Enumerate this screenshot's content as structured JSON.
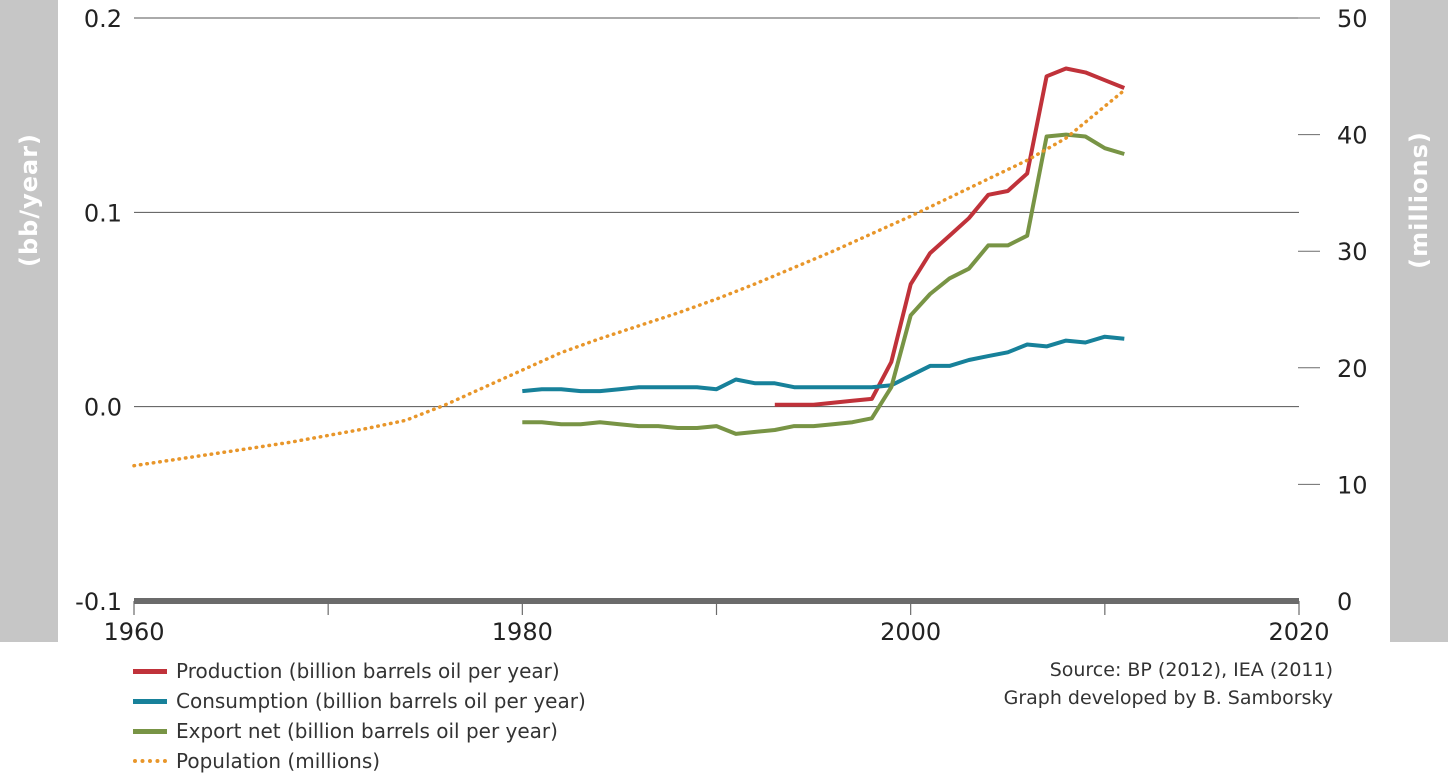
{
  "chart_data": {
    "type": "line",
    "y_left": {
      "label": "(bb/year)",
      "ticks": [
        0.2,
        0.1,
        0.0,
        -0.1
      ],
      "range": [
        -0.1,
        0.2
      ]
    },
    "y_right": {
      "label": "(millions)",
      "ticks": [
        50,
        40,
        30,
        20,
        10,
        0
      ],
      "range": [
        0,
        50
      ]
    },
    "x": {
      "ticks": [
        1960,
        1980,
        2000,
        2020
      ],
      "range": [
        1960,
        2020
      ]
    },
    "grid": true,
    "legend_position": "bottom-left",
    "series": [
      {
        "name": "Production (billion barrels oil per year)",
        "axis": "left",
        "color": "#c0323a",
        "style": "solid",
        "points": [
          [
            1993,
            0.001
          ],
          [
            1994,
            0.001
          ],
          [
            1995,
            0.001
          ],
          [
            1996,
            0.002
          ],
          [
            1997,
            0.003
          ],
          [
            1998,
            0.004
          ],
          [
            1999,
            0.023
          ],
          [
            2000,
            0.063
          ],
          [
            2001,
            0.079
          ],
          [
            2002,
            0.088
          ],
          [
            2003,
            0.097
          ],
          [
            2004,
            0.109
          ],
          [
            2005,
            0.111
          ],
          [
            2006,
            0.12
          ],
          [
            2007,
            0.17
          ],
          [
            2008,
            0.174
          ],
          [
            2009,
            0.172
          ],
          [
            2010,
            0.168
          ],
          [
            2011,
            0.164
          ]
        ]
      },
      {
        "name": "Consumption (billion barrels oil per year)",
        "axis": "left",
        "color": "#17819a",
        "style": "solid",
        "points": [
          [
            1980,
            0.008
          ],
          [
            1981,
            0.009
          ],
          [
            1982,
            0.009
          ],
          [
            1983,
            0.008
          ],
          [
            1984,
            0.008
          ],
          [
            1985,
            0.009
          ],
          [
            1986,
            0.01
          ],
          [
            1987,
            0.01
          ],
          [
            1988,
            0.01
          ],
          [
            1989,
            0.01
          ],
          [
            1990,
            0.009
          ],
          [
            1991,
            0.014
          ],
          [
            1992,
            0.012
          ],
          [
            1993,
            0.012
          ],
          [
            1994,
            0.01
          ],
          [
            1995,
            0.01
          ],
          [
            1996,
            0.01
          ],
          [
            1997,
            0.01
          ],
          [
            1998,
            0.01
          ],
          [
            1999,
            0.011
          ],
          [
            2000,
            0.016
          ],
          [
            2001,
            0.021
          ],
          [
            2002,
            0.021
          ],
          [
            2003,
            0.024
          ],
          [
            2004,
            0.026
          ],
          [
            2005,
            0.028
          ],
          [
            2006,
            0.032
          ],
          [
            2007,
            0.031
          ],
          [
            2008,
            0.034
          ],
          [
            2009,
            0.033
          ],
          [
            2010,
            0.036
          ],
          [
            2011,
            0.035
          ]
        ]
      },
      {
        "name": "Export net (billion barrels oil per year)",
        "axis": "left",
        "color": "#789445",
        "style": "solid",
        "points": [
          [
            1980,
            -0.008
          ],
          [
            1981,
            -0.008
          ],
          [
            1982,
            -0.009
          ],
          [
            1983,
            -0.009
          ],
          [
            1984,
            -0.008
          ],
          [
            1985,
            -0.009
          ],
          [
            1986,
            -0.01
          ],
          [
            1987,
            -0.01
          ],
          [
            1988,
            -0.011
          ],
          [
            1989,
            -0.011
          ],
          [
            1990,
            -0.01
          ],
          [
            1991,
            -0.014
          ],
          [
            1992,
            -0.013
          ],
          [
            1993,
            -0.012
          ],
          [
            1994,
            -0.01
          ],
          [
            1995,
            -0.01
          ],
          [
            1996,
            -0.009
          ],
          [
            1997,
            -0.008
          ],
          [
            1998,
            -0.006
          ],
          [
            1999,
            0.01
          ],
          [
            2000,
            0.047
          ],
          [
            2001,
            0.058
          ],
          [
            2002,
            0.066
          ],
          [
            2003,
            0.071
          ],
          [
            2004,
            0.083
          ],
          [
            2005,
            0.083
          ],
          [
            2006,
            0.088
          ],
          [
            2007,
            0.139
          ],
          [
            2008,
            0.14
          ],
          [
            2009,
            0.139
          ],
          [
            2010,
            0.133
          ],
          [
            2011,
            0.13
          ]
        ]
      },
      {
        "name": "Population (millions)",
        "axis": "right",
        "color": "#e8962a",
        "style": "dotted",
        "points": [
          [
            1960,
            11.6
          ],
          [
            1962,
            12.1
          ],
          [
            1964,
            12.6
          ],
          [
            1966,
            13.1
          ],
          [
            1968,
            13.6
          ],
          [
            1970,
            14.2
          ],
          [
            1972,
            14.8
          ],
          [
            1974,
            15.5
          ],
          [
            1976,
            16.8
          ],
          [
            1978,
            18.3
          ],
          [
            1980,
            19.8
          ],
          [
            1982,
            21.3
          ],
          [
            1984,
            22.5
          ],
          [
            1986,
            23.6
          ],
          [
            1988,
            24.7
          ],
          [
            1990,
            25.9
          ],
          [
            1992,
            27.2
          ],
          [
            1994,
            28.6
          ],
          [
            1996,
            30.0
          ],
          [
            1998,
            31.5
          ],
          [
            2000,
            33.0
          ],
          [
            2002,
            34.6
          ],
          [
            2004,
            36.2
          ],
          [
            2006,
            37.8
          ],
          [
            2008,
            39.7
          ],
          [
            2011,
            43.8
          ]
        ]
      }
    ]
  },
  "legend": {
    "production": "Production (billion barrels oil per year)",
    "consumption": "Consumption (billion barrels oil per year)",
    "export": "Export net (billion barrels oil per year)",
    "population": "Population (millions)"
  },
  "source": {
    "line1": "Source: BP (2012), IEA (2011)",
    "line2": "Graph developed by B. Samborsky"
  },
  "colors": {
    "production": "#c0323a",
    "consumption": "#17819a",
    "export": "#789445",
    "population": "#e8962a"
  }
}
